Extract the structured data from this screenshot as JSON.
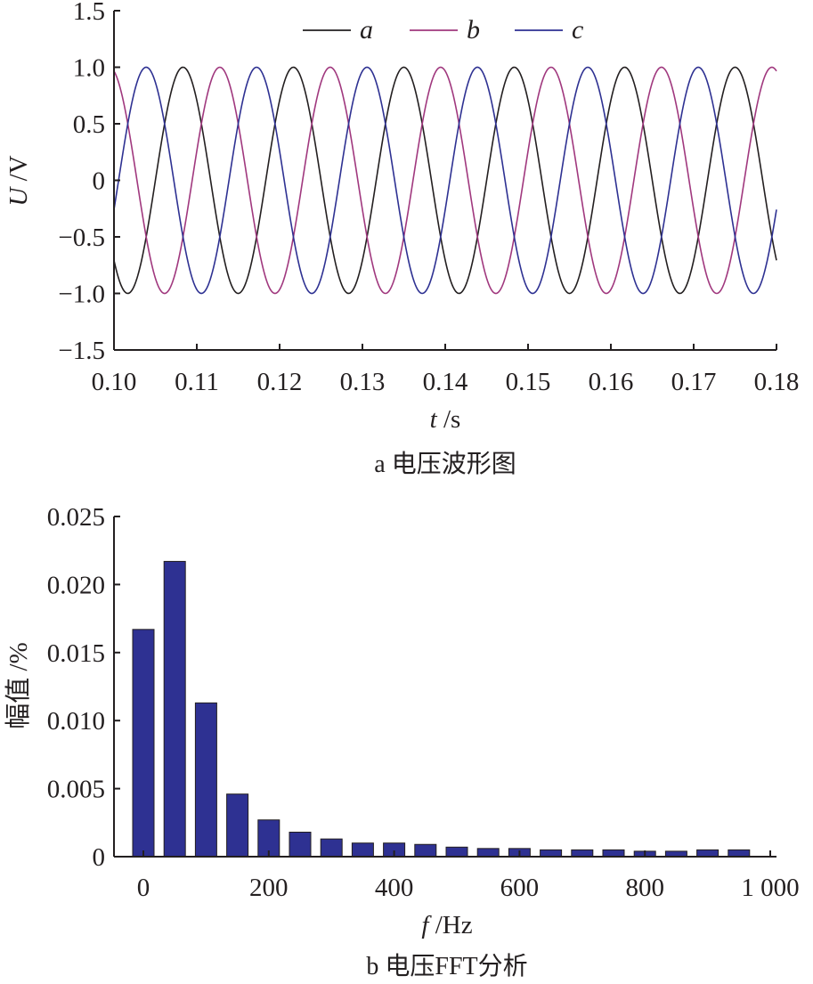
{
  "chart_data": [
    {
      "type": "line",
      "title": "",
      "caption": "a 电压波形图",
      "xlabel_italic": "t",
      "xlabel_rest": " /s",
      "ylabel_italic": "U",
      "ylabel_rest": " /V",
      "xlim": [
        0.1,
        0.18
      ],
      "ylim": [
        -1.5,
        1.5
      ],
      "xticks": [
        0.1,
        0.11,
        0.12,
        0.13,
        0.14,
        0.15,
        0.16,
        0.17,
        0.18
      ],
      "xtick_labels": [
        "0.10",
        "0.11",
        "0.12",
        "0.13",
        "0.14",
        "0.15",
        "0.16",
        "0.17",
        "0.18"
      ],
      "yticks": [
        1.5,
        1.0,
        0.5,
        0,
        -0.5,
        -1.0,
        -1.5
      ],
      "ytick_labels": [
        "1.5",
        "1.0",
        "0.5",
        "0",
        "−0.5",
        "−1.0",
        "−1.5"
      ],
      "grid": false,
      "legend_position": "top",
      "frequency_hz": 75,
      "series": [
        {
          "name": "a",
          "color": "#231f20",
          "amplitude": 1.0,
          "phase_deg": 45
        },
        {
          "name": "b",
          "color": "#a0387e",
          "amplitude": 1.0,
          "phase_deg": -75
        },
        {
          "name": "c",
          "color": "#2e3192",
          "amplitude": 1.0,
          "phase_deg": 165
        }
      ]
    },
    {
      "type": "bar",
      "title": "",
      "caption": "b 电压FFT分析",
      "xlabel_italic": "f",
      "xlabel_rest": " /Hz",
      "ylabel": "幅值 /%",
      "xlim": [
        -30,
        1000
      ],
      "ylim": [
        0,
        0.025
      ],
      "xticks": [
        0,
        200,
        400,
        600,
        800,
        1000
      ],
      "xtick_labels": [
        "0",
        "200",
        "400",
        "600",
        "800",
        "1 000"
      ],
      "yticks": [
        0.025,
        0.02,
        0.015,
        0.01,
        0.005,
        0
      ],
      "ytick_labels": [
        "0.025",
        "0.020",
        "0.015",
        "0.010",
        "0.005",
        "0"
      ],
      "grid": false,
      "bar_color": "#2e3192",
      "x": [
        0,
        50,
        100,
        150,
        200,
        250,
        300,
        350,
        400,
        450,
        500,
        550,
        600,
        650,
        700,
        750,
        800,
        850,
        900,
        950
      ],
      "values": [
        0.0167,
        0.0217,
        0.0113,
        0.0046,
        0.0027,
        0.0018,
        0.0013,
        0.001,
        0.001,
        0.0009,
        0.0007,
        0.0006,
        0.0006,
        0.0005,
        0.0005,
        0.0005,
        0.0004,
        0.0004,
        0.0005,
        0.0005
      ]
    }
  ]
}
